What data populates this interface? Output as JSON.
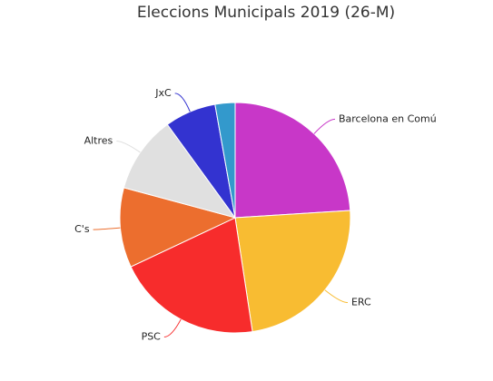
{
  "chart_data": {
    "type": "pie",
    "title": "Eleccions Municipals 2019 (26-M)",
    "categories": [
      "Barcelona en Comú",
      "ERC",
      "PSC",
      "C's",
      "Altres",
      "JxC",
      null
    ],
    "values": [
      24,
      23.6,
      20.4,
      11.2,
      10.8,
      7.2,
      2.8
    ],
    "colors": [
      "#c837c8",
      "#f8bc32",
      "#f72c2c",
      "#ec6e2e",
      "#e0e0e0",
      "#3333d0",
      "#3399cc"
    ]
  }
}
